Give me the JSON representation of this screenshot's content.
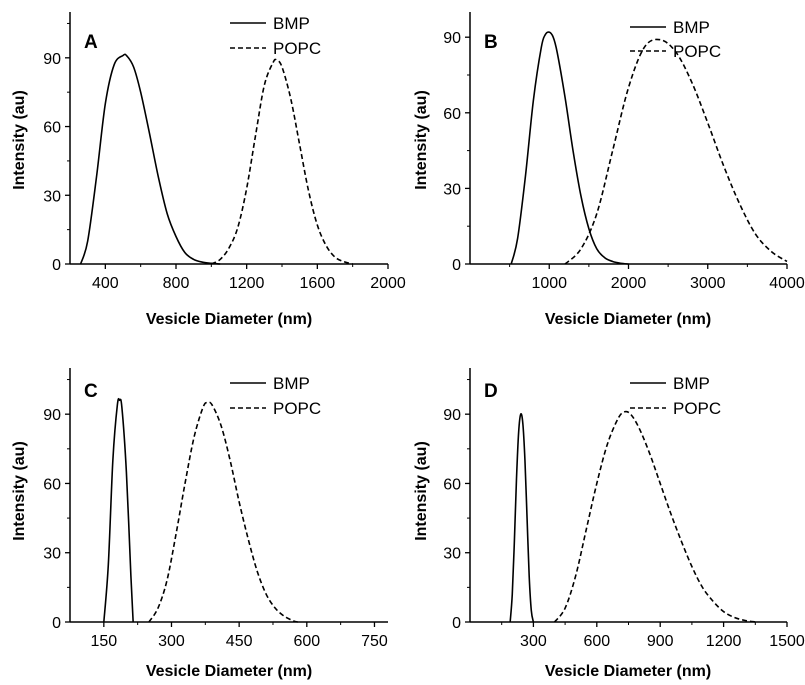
{
  "chart_data": [
    {
      "panel": "A",
      "type": "line",
      "xlabel": "Vesicle Diameter (nm)",
      "ylabel": "Intensity (au)",
      "xlim": [
        200,
        2000
      ],
      "ylim": [
        0,
        110
      ],
      "xticks": [
        400,
        800,
        1200,
        1600,
        2000
      ],
      "yticks": [
        0,
        30,
        60,
        90
      ],
      "legend_position": "top-right",
      "series": [
        {
          "name": "BMP",
          "style": "solid",
          "x": [
            260,
            300,
            350,
            400,
            450,
            500,
            520,
            560,
            600,
            650,
            700,
            750,
            800,
            850,
            900,
            950,
            1000,
            1050
          ],
          "y": [
            0,
            10,
            38,
            70,
            87,
            91,
            91,
            86,
            75,
            57,
            38,
            22,
            12,
            5,
            2,
            0.8,
            0.3,
            0
          ]
        },
        {
          "name": "POPC",
          "style": "dashed",
          "x": [
            1000,
            1050,
            1100,
            1150,
            1200,
            1250,
            1300,
            1350,
            1370,
            1400,
            1450,
            1500,
            1550,
            1600,
            1650,
            1700,
            1750,
            1800
          ],
          "y": [
            0,
            2,
            7,
            16,
            33,
            56,
            78,
            88,
            89,
            86,
            72,
            52,
            32,
            17,
            8,
            3,
            1,
            0
          ]
        }
      ]
    },
    {
      "panel": "B",
      "type": "line",
      "xlabel": "Vesicle Diameter (nm)",
      "ylabel": "Intensity (au)",
      "xlim": [
        0,
        4000
      ],
      "ylim": [
        0,
        100
      ],
      "xticks": [
        1000,
        2000,
        3000,
        4000
      ],
      "yticks": [
        0,
        30,
        60,
        90
      ],
      "legend_position": "top-right",
      "series": [
        {
          "name": "BMP",
          "style": "solid",
          "x": [
            520,
            600,
            700,
            800,
            900,
            950,
            1000,
            1050,
            1100,
            1200,
            1300,
            1400,
            1500,
            1600,
            1700,
            1800,
            1900,
            2000
          ],
          "y": [
            0,
            10,
            35,
            65,
            86,
            91,
            92,
            90,
            84,
            66,
            45,
            27,
            14,
            6,
            2.5,
            1,
            0.3,
            0
          ]
        },
        {
          "name": "POPC",
          "style": "dashed",
          "x": [
            1200,
            1400,
            1600,
            1800,
            2000,
            2200,
            2400,
            2600,
            2800,
            3000,
            3200,
            3400,
            3600,
            3800,
            4000
          ],
          "y": [
            0,
            6,
            20,
            45,
            70,
            86,
            89,
            84,
            72,
            56,
            39,
            24,
            12,
            5,
            1
          ]
        }
      ]
    },
    {
      "panel": "C",
      "type": "line",
      "xlabel": "Vesicle Diameter (nm)",
      "ylabel": "Intensity (au)",
      "xlim": [
        75,
        780
      ],
      "ylim": [
        0,
        110
      ],
      "xticks": [
        150,
        300,
        450,
        600,
        750
      ],
      "yticks": [
        0,
        30,
        60,
        90
      ],
      "legend_position": "top-right",
      "series": [
        {
          "name": "BMP",
          "style": "solid",
          "x": [
            150,
            160,
            170,
            180,
            185,
            190,
            200,
            210,
            215
          ],
          "y": [
            0,
            25,
            70,
            94,
            96,
            93,
            65,
            20,
            0
          ]
        },
        {
          "name": "POPC",
          "style": "dashed",
          "x": [
            250,
            270,
            290,
            310,
            330,
            350,
            370,
            380,
            390,
            410,
            430,
            450,
            470,
            490,
            510,
            530,
            550,
            570,
            580
          ],
          "y": [
            0,
            6,
            18,
            38,
            60,
            80,
            93,
            95,
            94,
            85,
            70,
            52,
            36,
            22,
            12,
            6,
            2.5,
            0.5,
            0
          ]
        }
      ]
    },
    {
      "panel": "D",
      "type": "line",
      "xlabel": "Vesicle Diameter (nm)",
      "ylabel": "Intensity (au)",
      "xlim": [
        0,
        1500
      ],
      "ylim": [
        0,
        110
      ],
      "xticks": [
        300,
        600,
        900,
        1200,
        1500
      ],
      "yticks": [
        0,
        30,
        60,
        90
      ],
      "legend_position": "top-right",
      "series": [
        {
          "name": "BMP",
          "style": "solid",
          "x": [
            190,
            200,
            210,
            220,
            230,
            240,
            250,
            260,
            270,
            280,
            290,
            300
          ],
          "y": [
            0,
            12,
            35,
            62,
            82,
            90,
            86,
            70,
            45,
            20,
            5,
            0
          ]
        },
        {
          "name": "POPC",
          "style": "dashed",
          "x": [
            400,
            450,
            500,
            550,
            600,
            650,
            700,
            730,
            760,
            800,
            850,
            900,
            950,
            1000,
            1050,
            1100,
            1150,
            1200,
            1250,
            1300,
            1350
          ],
          "y": [
            0,
            6,
            20,
            40,
            60,
            77,
            88,
            91,
            90,
            84,
            73,
            60,
            47,
            35,
            24,
            15,
            9,
            4.5,
            2,
            0.7,
            0
          ]
        }
      ]
    }
  ]
}
